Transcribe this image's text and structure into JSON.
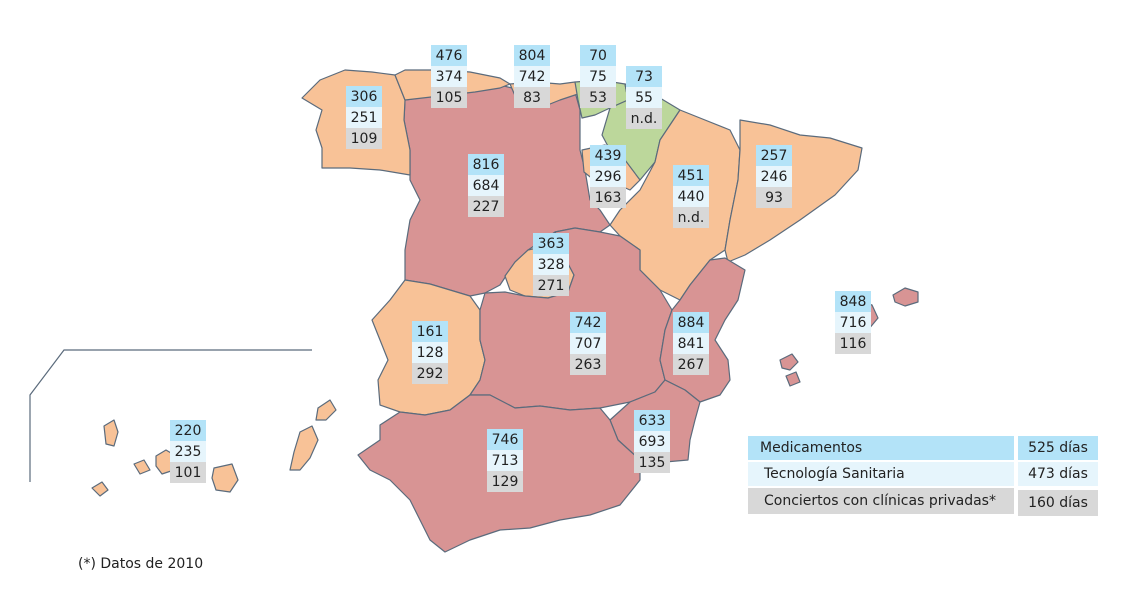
{
  "regions": [
    {
      "id": "asturias",
      "med": "476",
      "tec": "374",
      "con": "105"
    },
    {
      "id": "cantabria",
      "med": "804",
      "tec": "742",
      "con": "83"
    },
    {
      "id": "pais-vasco",
      "med": "70",
      "tec": "75",
      "con": "53"
    },
    {
      "id": "navarra",
      "med": "73",
      "tec": "55",
      "con": "n.d."
    },
    {
      "id": "galicia",
      "med": "306",
      "tec": "251",
      "con": "109"
    },
    {
      "id": "la-rioja",
      "med": "439",
      "tec": "296",
      "con": "163"
    },
    {
      "id": "castilla-leon",
      "med": "816",
      "tec": "684",
      "con": "227"
    },
    {
      "id": "aragon",
      "med": "451",
      "tec": "440",
      "con": "n.d."
    },
    {
      "id": "cataluna",
      "med": "257",
      "tec": "246",
      "con": "93"
    },
    {
      "id": "madrid",
      "med": "363",
      "tec": "328",
      "con": "271"
    },
    {
      "id": "baleares",
      "med": "848",
      "tec": "716",
      "con": "116"
    },
    {
      "id": "extremadura",
      "med": "161",
      "tec": "128",
      "con": "292"
    },
    {
      "id": "castilla-la-mancha",
      "med": "742",
      "tec": "707",
      "con": "263"
    },
    {
      "id": "valencia",
      "med": "884",
      "tec": "841",
      "con": "267"
    },
    {
      "id": "murcia",
      "med": "633",
      "tec": "693",
      "con": "135"
    },
    {
      "id": "andalucia",
      "med": "746",
      "tec": "713",
      "con": "129"
    },
    {
      "id": "canarias",
      "med": "220",
      "tec": "235",
      "con": "101"
    }
  ],
  "legend": {
    "med_label": "Medicamentos",
    "med_value": "525 días",
    "tec_label": "Tecnología Sanitaria",
    "tec_value": "473 días",
    "con_label": "Conciertos con clínicas privadas*",
    "con_value": "160 días"
  },
  "footnote": "(*) Datos de 2010",
  "colors": {
    "medicamentos": "#b3e3f8",
    "tecnologia": "#e6f5fc",
    "conciertos": "#d8d8d8",
    "region_orange": "#f8c297",
    "region_red": "#d89494",
    "region_green": "#bcd79b"
  }
}
